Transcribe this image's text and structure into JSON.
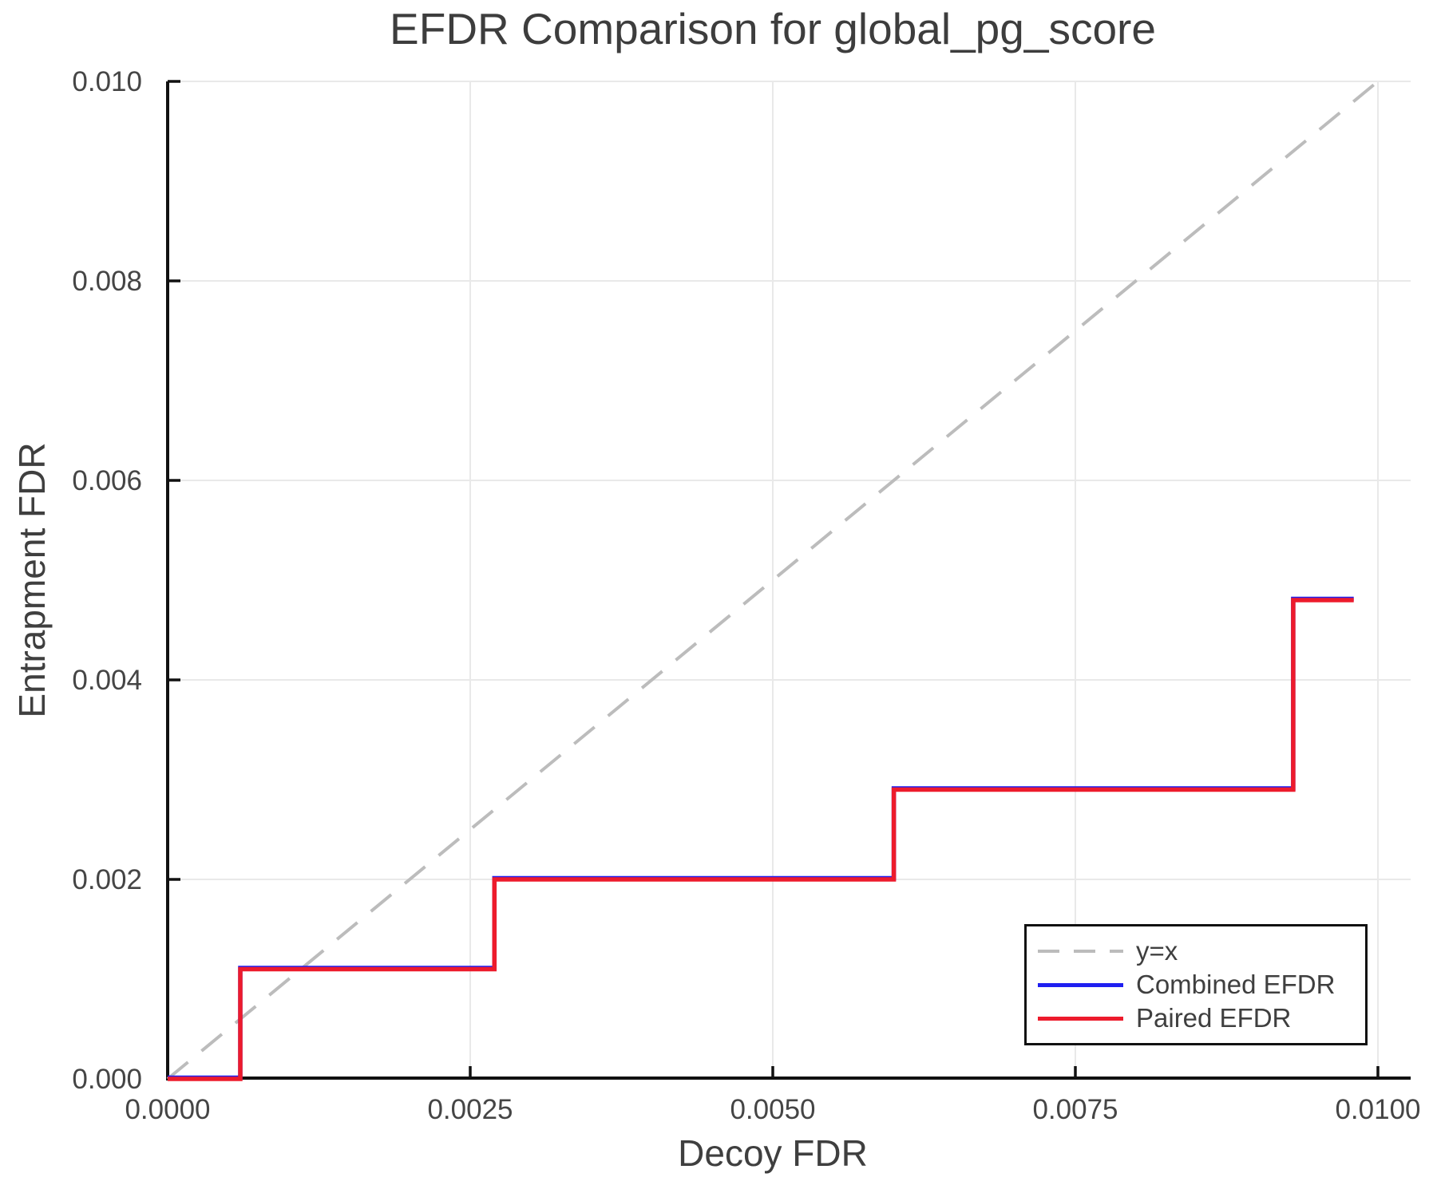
{
  "chart_data": {
    "type": "line",
    "title": "EFDR Comparison for global_pg_score",
    "xlabel": "Decoy FDR",
    "ylabel": "Entrapment FDR",
    "xlim": [
      0,
      0.0103
    ],
    "ylim": [
      0,
      0.01
    ],
    "grid": true,
    "x_ticks": [
      {
        "value": 0.0,
        "label": "0.0000"
      },
      {
        "value": 0.0025,
        "label": "0.0025"
      },
      {
        "value": 0.005,
        "label": "0.0050"
      },
      {
        "value": 0.0075,
        "label": "0.0075"
      },
      {
        "value": 0.01,
        "label": "0.0100"
      }
    ],
    "y_ticks": [
      {
        "value": 0.0,
        "label": "0.000"
      },
      {
        "value": 0.002,
        "label": "0.002"
      },
      {
        "value": 0.004,
        "label": "0.004"
      },
      {
        "value": 0.006,
        "label": "0.006"
      },
      {
        "value": 0.008,
        "label": "0.008"
      },
      {
        "value": 0.01,
        "label": "0.010"
      }
    ],
    "legend": {
      "position": "lower right",
      "entries": [
        {
          "label": "y=x",
          "color": "#bcbcbc",
          "style": "dashed"
        },
        {
          "label": "Combined EFDR",
          "color": "#1f1ff0",
          "style": "solid"
        },
        {
          "label": "Paired EFDR",
          "color": "#ed1b2c",
          "style": "solid"
        }
      ]
    },
    "series": [
      {
        "name": "y=x",
        "mode": "line",
        "style": "dashed",
        "color": "#bcbcbc",
        "points": [
          [
            0,
            0
          ],
          [
            0.01,
            0.01
          ]
        ]
      },
      {
        "name": "Combined EFDR",
        "mode": "step",
        "style": "solid",
        "color": "#1f1ff0",
        "note": "almost entirely hidden beneath Paired EFDR (identical values)",
        "points": [
          [
            0,
            0
          ],
          [
            0.0006,
            0
          ],
          [
            0.0006,
            0.0011
          ],
          [
            0.0027,
            0.0011
          ],
          [
            0.0027,
            0.002
          ],
          [
            0.006,
            0.002
          ],
          [
            0.006,
            0.0029
          ],
          [
            0.0093,
            0.0029
          ],
          [
            0.0093,
            0.0048
          ],
          [
            0.0098,
            0.0048
          ]
        ]
      },
      {
        "name": "Paired EFDR",
        "mode": "step",
        "style": "solid",
        "color": "#ed1b2c",
        "points": [
          [
            0,
            0
          ],
          [
            0.0006,
            0
          ],
          [
            0.0006,
            0.0011
          ],
          [
            0.0027,
            0.0011
          ],
          [
            0.0027,
            0.002
          ],
          [
            0.006,
            0.002
          ],
          [
            0.006,
            0.0029
          ],
          [
            0.0093,
            0.0029
          ],
          [
            0.0093,
            0.0048
          ],
          [
            0.0098,
            0.0048
          ]
        ]
      }
    ]
  },
  "colors": {
    "background": "#ffffff",
    "axis": "#111111",
    "grid": "#e9e9e9",
    "title_text": "#3d3d3d",
    "tick_text": "#454545",
    "legend_border": "#111111"
  }
}
